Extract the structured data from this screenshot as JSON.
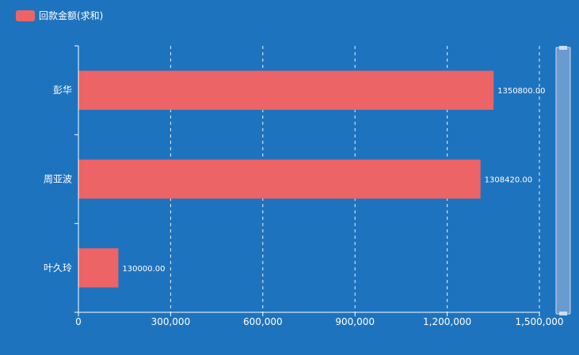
{
  "legend": {
    "label": "回款金额(求和)"
  },
  "chart_data": {
    "type": "bar",
    "orientation": "horizontal",
    "categories": [
      "彭华",
      "周亚波",
      "叶久玲"
    ],
    "values": [
      1350800,
      1308420,
      130000
    ],
    "data_labels": [
      "1350800.00",
      "1308420.00",
      "130000.00"
    ],
    "series": [
      {
        "name": "回款金额(求和)",
        "values": [
          1350800,
          1308420,
          130000
        ]
      }
    ],
    "xlim": [
      0,
      1500000
    ],
    "x_ticks": [
      0,
      300000,
      600000,
      900000,
      1200000,
      1500000
    ],
    "x_tick_labels": [
      "0",
      "300,000",
      "600,000",
      "900,000",
      "1,200,000",
      "1,500,000"
    ],
    "grid": "vertical-dashed",
    "legend_position": "top-left",
    "has_datazoom_slider": true
  },
  "colors": {
    "background": "#1e73be",
    "bar": "#ec6465",
    "axis": "#ffffff",
    "grid": "#ffffff",
    "slider": "#6a9bcf"
  }
}
